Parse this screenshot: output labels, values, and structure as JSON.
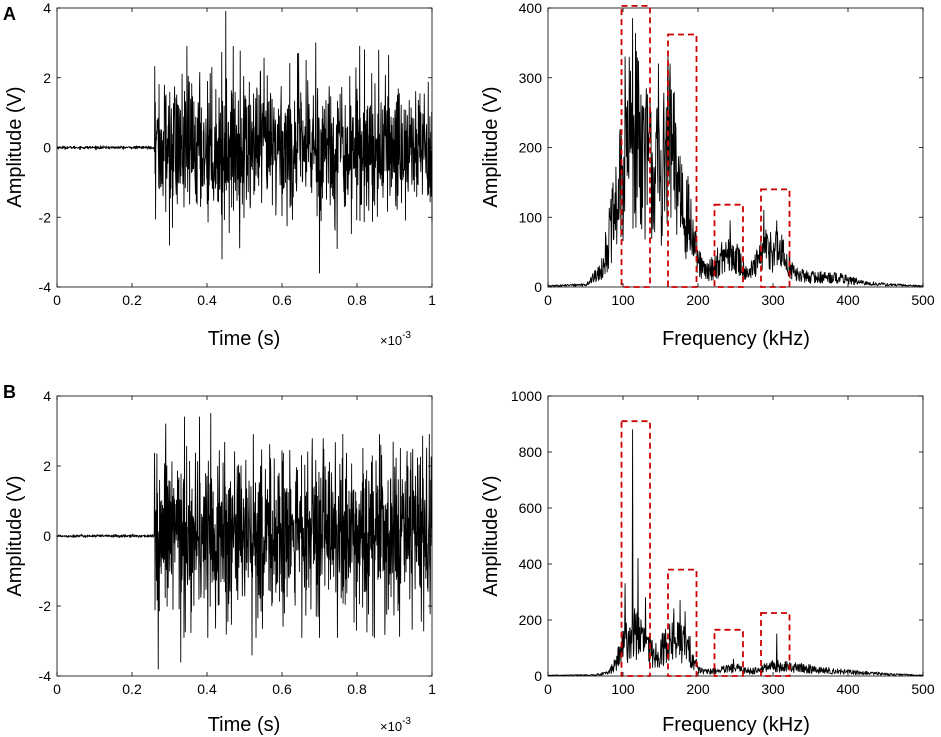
{
  "chart_data": [
    {
      "id": "A-time",
      "panel": "A",
      "type": "line",
      "xlabel": "Time (s)",
      "ylabel": "Amplitude (V)",
      "xlim": [
        0,
        1
      ],
      "ylim": [
        -4,
        4
      ],
      "xticks": [
        "0",
        "0.2",
        "0.4",
        "0.6",
        "0.8",
        "1"
      ],
      "yticks": [
        "-4",
        "-2",
        "0",
        "2",
        "4"
      ],
      "x_exponent": {
        "base": "×10",
        "power": "-3"
      },
      "signal": {
        "onset": 0.26,
        "rms": 1.0,
        "peaks": [
          [
            0.45,
            3.9
          ],
          [
            0.7,
            -3.6
          ],
          [
            0.69,
            3.0
          ],
          [
            0.82,
            2.8
          ],
          [
            0.44,
            -3.2
          ],
          [
            0.3,
            -2.8
          ]
        ]
      },
      "grid": false
    },
    {
      "id": "A-freq",
      "panel": "A",
      "type": "line",
      "xlabel": "Frequency (kHz)",
      "ylabel": "Amplitude (V)",
      "xlim": [
        0,
        500
      ],
      "ylim": [
        0,
        400
      ],
      "xticks": [
        "0",
        "100",
        "200",
        "300",
        "400",
        "500"
      ],
      "yticks": [
        "0",
        "100",
        "200",
        "300",
        "400"
      ],
      "spectrum_envelope": [
        [
          0,
          2
        ],
        [
          50,
          5
        ],
        [
          70,
          30
        ],
        [
          90,
          150
        ],
        [
          100,
          230
        ],
        [
          110,
          300
        ],
        [
          120,
          330
        ],
        [
          130,
          260
        ],
        [
          140,
          240
        ],
        [
          150,
          230
        ],
        [
          160,
          270
        ],
        [
          170,
          240
        ],
        [
          180,
          180
        ],
        [
          190,
          120
        ],
        [
          200,
          50
        ],
        [
          210,
          30
        ],
        [
          220,
          40
        ],
        [
          230,
          55
        ],
        [
          240,
          65
        ],
        [
          250,
          60
        ],
        [
          260,
          40
        ],
        [
          270,
          30
        ],
        [
          280,
          50
        ],
        [
          290,
          75
        ],
        [
          300,
          80
        ],
        [
          310,
          70
        ],
        [
          320,
          50
        ],
        [
          330,
          25
        ],
        [
          350,
          20
        ],
        [
          380,
          20
        ],
        [
          400,
          15
        ],
        [
          420,
          8
        ],
        [
          450,
          5
        ],
        [
          500,
          2
        ]
      ],
      "spectrum_peaks": [
        [
          113,
          385
        ],
        [
          103,
          330
        ],
        [
          147,
          320
        ],
        [
          160,
          330
        ],
        [
          163,
          320
        ],
        [
          243,
          95
        ],
        [
          288,
          110
        ],
        [
          305,
          95
        ]
      ],
      "highlight_boxes": [
        [
          98,
          136,
          0,
          403
        ],
        [
          160,
          198,
          0,
          362
        ],
        [
          222,
          260,
          0,
          118
        ],
        [
          284,
          322,
          0,
          140
        ]
      ],
      "grid": false
    },
    {
      "id": "B-time",
      "panel": "B",
      "type": "line",
      "xlabel": "Time (s)",
      "ylabel": "Amplitude (V)",
      "xlim": [
        0,
        1
      ],
      "ylim": [
        -4,
        4
      ],
      "xticks": [
        "0",
        "0.2",
        "0.4",
        "0.6",
        "0.8",
        "1"
      ],
      "yticks": [
        "-4",
        "-2",
        "0",
        "2",
        "4"
      ],
      "x_exponent": {
        "base": "×10",
        "power": "-3"
      },
      "signal": {
        "onset": 0.26,
        "rms": 1.2,
        "peaks": [
          [
            0.27,
            -3.8
          ],
          [
            0.41,
            3.5
          ],
          [
            0.34,
            3.4
          ],
          [
            0.38,
            3.4
          ],
          [
            0.33,
            -3.6
          ],
          [
            0.29,
            3.2
          ],
          [
            0.52,
            -3.4
          ]
        ]
      },
      "grid": false
    },
    {
      "id": "B-freq",
      "panel": "B",
      "type": "line",
      "xlabel": "Frequency (kHz)",
      "ylabel": "Amplitude (V)",
      "xlim": [
        0,
        500
      ],
      "ylim": [
        0,
        1000
      ],
      "xticks": [
        "0",
        "100",
        "200",
        "300",
        "400",
        "500"
      ],
      "yticks": [
        "0",
        "200",
        "400",
        "600",
        "800",
        "1000"
      ],
      "spectrum_envelope": [
        [
          0,
          3
        ],
        [
          60,
          5
        ],
        [
          80,
          15
        ],
        [
          90,
          60
        ],
        [
          100,
          150
        ],
        [
          110,
          200
        ],
        [
          120,
          220
        ],
        [
          130,
          150
        ],
        [
          140,
          110
        ],
        [
          150,
          120
        ],
        [
          160,
          170
        ],
        [
          170,
          180
        ],
        [
          180,
          170
        ],
        [
          190,
          120
        ],
        [
          200,
          40
        ],
        [
          210,
          20
        ],
        [
          230,
          30
        ],
        [
          250,
          40
        ],
        [
          270,
          25
        ],
        [
          290,
          40
        ],
        [
          300,
          50
        ],
        [
          320,
          45
        ],
        [
          340,
          40
        ],
        [
          360,
          30
        ],
        [
          400,
          20
        ],
        [
          450,
          10
        ],
        [
          500,
          3
        ]
      ],
      "spectrum_peaks": [
        [
          113,
          880
        ],
        [
          120,
          420
        ],
        [
          103,
          330
        ],
        [
          130,
          280
        ],
        [
          168,
          240
        ],
        [
          176,
          270
        ],
        [
          183,
          230
        ],
        [
          247,
          60
        ],
        [
          305,
          150
        ]
      ],
      "highlight_boxes": [
        [
          98,
          136,
          0,
          910
        ],
        [
          160,
          198,
          0,
          380
        ],
        [
          222,
          260,
          0,
          165
        ],
        [
          284,
          322,
          0,
          225
        ]
      ],
      "grid": false
    }
  ],
  "style": {
    "line_color": "#000000",
    "box_color": "#cc0000",
    "axis_color": "#000000"
  }
}
